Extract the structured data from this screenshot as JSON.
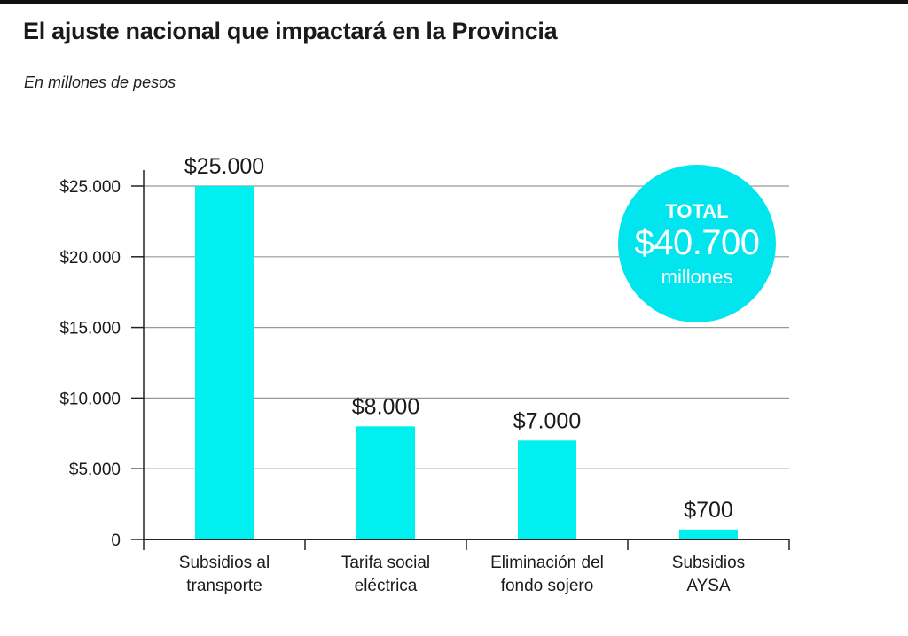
{
  "title": "El ajuste nacional que impactará en la Provincia",
  "subtitle": "En millones de pesos",
  "colors": {
    "bar": "#00f0f0",
    "grid": "#999999",
    "axis": "#222222",
    "text": "#1a1a1a",
    "bubble": "#00e5ee"
  },
  "total_badge": {
    "label": "TOTAL",
    "value": "$40.700",
    "unit": "millones"
  },
  "chart_data": {
    "type": "bar",
    "categories": [
      [
        "Subsidios al",
        "transporte"
      ],
      [
        "Tarifa social",
        "eléctrica"
      ],
      [
        "Eliminación del",
        "fondo sojero"
      ],
      [
        "Subsidios",
        "AYSA"
      ]
    ],
    "values": [
      25000,
      8000,
      7000,
      700
    ],
    "value_labels": [
      "$25.000",
      "$8.000",
      "$7.000",
      "$700"
    ],
    "ylim": [
      0,
      25000
    ],
    "yticks": [
      0,
      5000,
      10000,
      15000,
      20000,
      25000
    ],
    "ytick_labels": [
      "0",
      "$5.000",
      "$10.000",
      "$15.000",
      "$20.000",
      "$25.000"
    ],
    "grid": true,
    "legend": "none"
  }
}
